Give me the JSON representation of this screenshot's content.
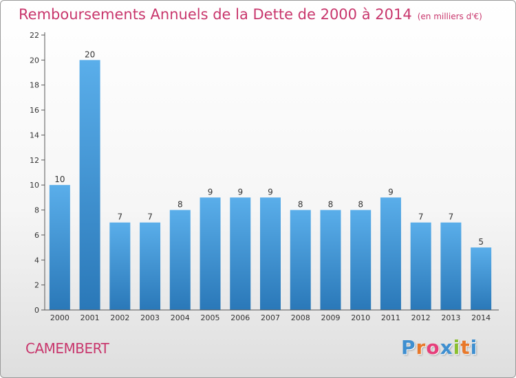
{
  "title": "Remboursements Annuels de la Dette de 2000 à 2014",
  "subtitle": "(en milliers d'€)",
  "commune": "CAMEMBERT",
  "logo": {
    "letters": [
      "P",
      "r",
      "o",
      "x",
      "i",
      "t",
      "i"
    ],
    "colors": [
      "#3f8fd0",
      "#e8782a",
      "#e63f7b",
      "#3f8fd0",
      "#8bbf2f",
      "#e8782a",
      "#3f8fd0"
    ]
  },
  "colors": {
    "title": "#c8366c",
    "bar_top": "#5aaeea",
    "bar_bottom": "#2a78b8"
  },
  "chart_data": {
    "type": "bar",
    "categories": [
      "2000",
      "2001",
      "2002",
      "2003",
      "2004",
      "2005",
      "2006",
      "2007",
      "2008",
      "2009",
      "2010",
      "2011",
      "2012",
      "2013",
      "2014"
    ],
    "values": [
      10,
      20,
      7,
      7,
      8,
      9,
      9,
      9,
      8,
      8,
      8,
      9,
      7,
      7,
      5
    ],
    "title": "Remboursements Annuels de la Dette de 2000 à 2014",
    "xlabel": "",
    "ylabel": "",
    "ylim": [
      0,
      22
    ],
    "yticks": [
      0,
      2,
      4,
      6,
      8,
      10,
      12,
      14,
      16,
      18,
      20,
      22
    ],
    "grid": false,
    "legend": "none"
  }
}
